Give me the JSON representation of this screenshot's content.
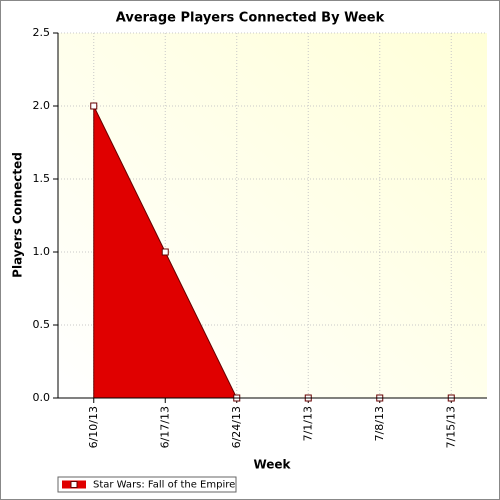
{
  "chart_data": {
    "type": "area",
    "title": "Average Players Connected By Week",
    "x_label": "Week",
    "y_label": "Players Connected",
    "categories": [
      "6/10/13",
      "6/17/13",
      "6/24/13",
      "7/1/13",
      "7/8/13",
      "7/15/13"
    ],
    "series": [
      {
        "name": "Star Wars: Fall of the Empire",
        "color": "#e00000",
        "values": [
          2,
          1,
          0,
          0,
          0,
          0
        ]
      }
    ],
    "ylim": [
      0,
      2.5
    ],
    "yticks": [
      {
        "value": 0,
        "label": "0.0"
      },
      0.5,
      {
        "value": 1,
        "label": "1.0"
      },
      1.5,
      {
        "value": 2,
        "label": "2.0"
      },
      2.5
    ],
    "grid": true
  }
}
